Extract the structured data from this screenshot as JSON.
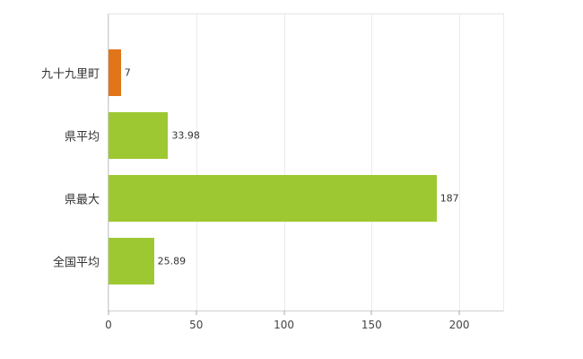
{
  "chart_data": {
    "type": "bar",
    "orientation": "horizontal",
    "title": "",
    "xlabel": "",
    "ylabel": "",
    "categories": [
      "九十九里町",
      "県平均",
      "県最大",
      "全国平均"
    ],
    "values": [
      7,
      33.98,
      187,
      25.89
    ],
    "value_labels": [
      "7",
      "33.98",
      "187",
      "25.89"
    ],
    "bar_colors": [
      "#e0751a",
      "#9ec832",
      "#9ec832",
      "#9ec832"
    ],
    "xlim": [
      0,
      225
    ],
    "xticks": [
      0,
      50,
      100,
      150,
      200
    ],
    "xtick_labels": [
      "0",
      "50",
      "100",
      "150",
      "200"
    ],
    "grid": true,
    "legend": "none",
    "background_color": "#ffffff"
  }
}
